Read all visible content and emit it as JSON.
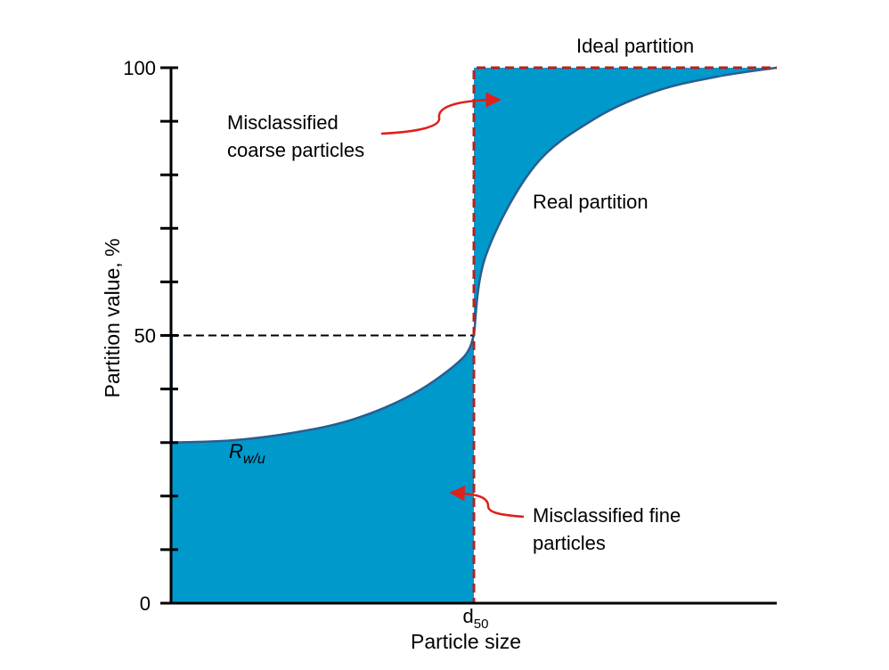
{
  "chart_data": {
    "type": "area",
    "title": "",
    "xlabel": "Particle size",
    "ylabel": "Partition value, %",
    "ylim": [
      0,
      100
    ],
    "y_tick_labels": [
      "0",
      "50",
      "100"
    ],
    "y_minor_ticks": [
      0,
      10,
      20,
      30,
      40,
      50,
      60,
      70,
      80,
      90,
      100
    ],
    "x_tick_label": "d50",
    "x_tick_label_main": "d",
    "x_tick_label_sub": "50",
    "grid": false,
    "series": [
      {
        "name": "Real partition",
        "x": [
          0,
          0.1,
          0.2,
          0.3,
          0.4,
          0.48,
          0.5,
          0.52,
          0.6,
          0.7,
          0.8,
          0.9,
          1.0
        ],
        "values": [
          30,
          30.4,
          31.8,
          34.3,
          39.1,
          45.6,
          50,
          65,
          81.6,
          90.5,
          95.6,
          98.3,
          100
        ]
      },
      {
        "name": "Ideal partition",
        "x": [
          0,
          0.5,
          0.5,
          1.0
        ],
        "values": [
          0,
          0,
          100,
          100
        ]
      }
    ],
    "annotations": {
      "ideal": "Ideal partition",
      "real": "Real partition",
      "coarse_line1": "Misclassified",
      "coarse_line2": "coarse particles",
      "fine_line1": "Misclassified fine",
      "fine_line2": "particles",
      "rwu_main": "R",
      "rwu_sub": "w/u"
    },
    "colors": {
      "fill": "#0099cc",
      "curve": "#2a5d8f",
      "ideal_dash": "#b22222",
      "arrow": "#e0201b",
      "axis": "#000000"
    }
  }
}
